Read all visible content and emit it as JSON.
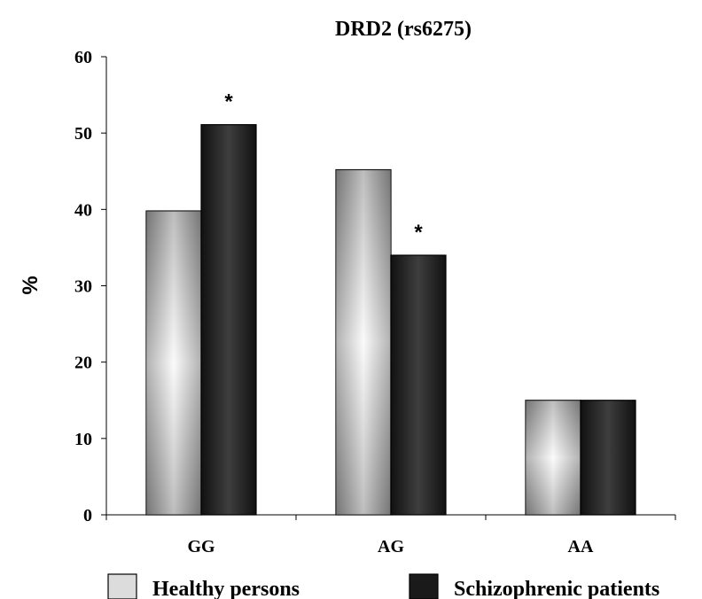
{
  "chart_data": {
    "type": "bar",
    "title": "DRD2 (rs6275)",
    "ylabel": "%",
    "xlabel": "",
    "categories": [
      "GG",
      "AG",
      "AA"
    ],
    "ylim": [
      0,
      60
    ],
    "yticks": [
      0,
      10,
      20,
      30,
      40,
      50,
      60
    ],
    "series": [
      {
        "name": "Healthy persons",
        "values": [
          39.8,
          45.2,
          15.0
        ],
        "color": "#8c8c8c"
      },
      {
        "name": "Schizophrenic patients",
        "values": [
          51.1,
          34.0,
          15.0
        ],
        "color": "#1a1a1a"
      }
    ],
    "annotations": [
      {
        "category": "GG",
        "series": "Schizophrenic patients",
        "text": "*"
      },
      {
        "category": "AG",
        "series": "Schizophrenic patients",
        "text": "*"
      }
    ],
    "legend": {
      "position": "bottom"
    },
    "grid": false
  }
}
